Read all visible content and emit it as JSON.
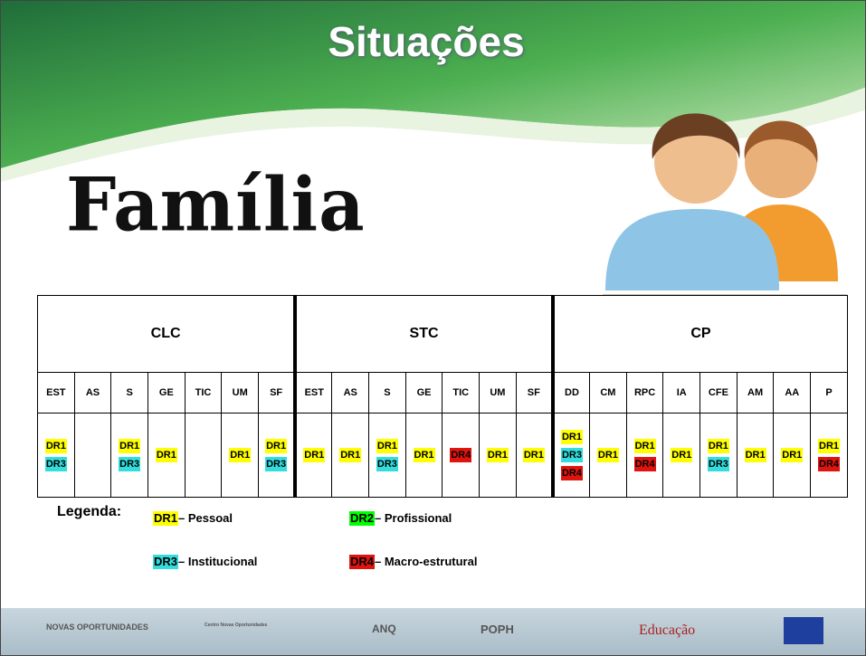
{
  "header": {
    "title": "Situações",
    "subtitle": "Família"
  },
  "tag_colors": {
    "DR1": "#ffff00",
    "DR2": "#00ff00",
    "DR3": "#33dddd",
    "DR4": "#e0140f"
  },
  "table": {
    "groups": [
      {
        "name": "CLC",
        "columns": [
          "EST",
          "AS",
          "S",
          "GE",
          "TIC",
          "UM",
          "SF"
        ],
        "cells": [
          [
            "DR1",
            "DR3"
          ],
          [],
          [
            "DR1",
            "DR3"
          ],
          [
            "DR1"
          ],
          [],
          [
            "DR1"
          ],
          [
            "DR1",
            "DR3"
          ]
        ]
      },
      {
        "name": "STC",
        "columns": [
          "EST",
          "AS",
          "S",
          "GE",
          "TIC",
          "UM",
          "SF"
        ],
        "cells": [
          [
            "DR1"
          ],
          [
            "DR1"
          ],
          [
            "DR1",
            "DR3"
          ],
          [
            "DR1"
          ],
          [
            "DR4"
          ],
          [
            "DR1"
          ],
          [
            "DR1"
          ]
        ]
      },
      {
        "name": "CP",
        "columns": [
          "DD",
          "CM",
          "RPC",
          "IA",
          "CFE",
          "AM",
          "AA",
          "P"
        ],
        "cells": [
          [
            "DR1",
            "DR3",
            "DR4"
          ],
          [
            "DR1"
          ],
          [
            "DR1",
            "DR4"
          ],
          [
            "DR1"
          ],
          [
            "DR1",
            "DR3"
          ],
          [
            "DR1"
          ],
          [
            "DR1"
          ],
          [
            "DR1",
            "DR4"
          ]
        ]
      }
    ]
  },
  "legend": {
    "title": "Legenda:",
    "items": [
      {
        "code": "DR1",
        "label": "– Pessoal"
      },
      {
        "code": "DR2",
        "label": "– Profissional"
      },
      {
        "code": "DR3",
        "label": "– Institucional"
      },
      {
        "code": "DR4",
        "label": "– Macro-estrutural"
      }
    ]
  },
  "footer": {
    "logos": [
      "NOVAS OPORTUNIDADES",
      "Centro Novas Oportunidades",
      "ANQ",
      "POPH",
      "Educação"
    ]
  }
}
